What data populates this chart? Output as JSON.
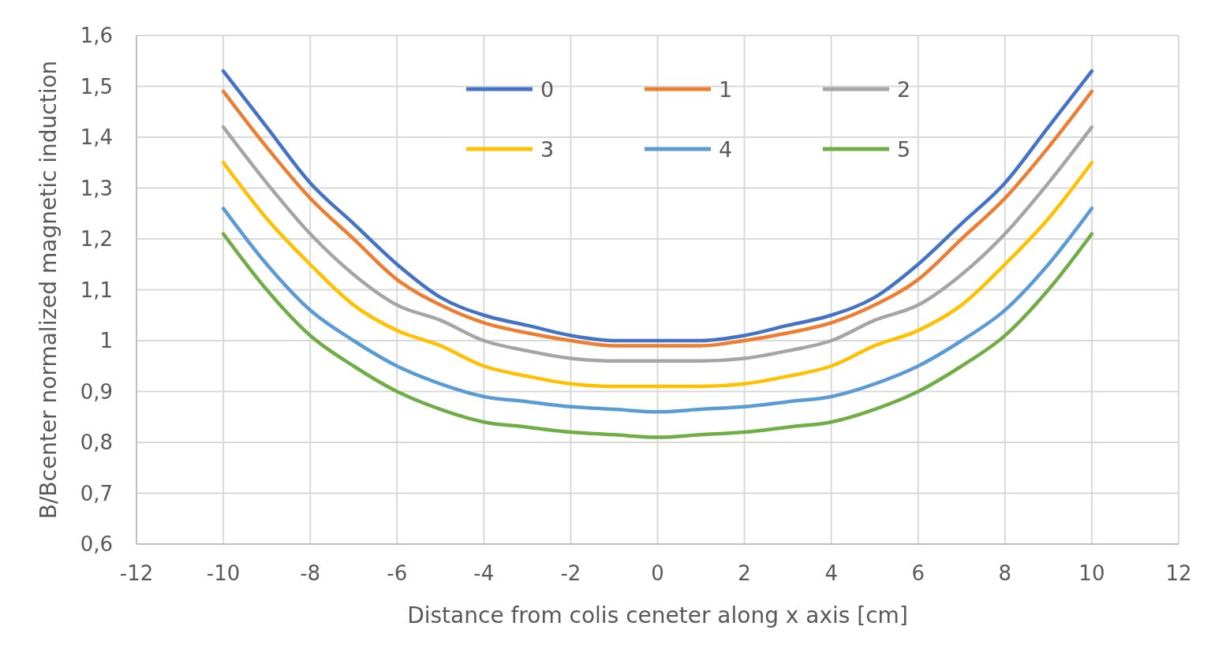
{
  "chart_data": {
    "type": "line",
    "xlabel": "Distance from colis ceneter along x axis [cm]",
    "ylabel": "B/Bcenter normalized magnetic induction",
    "x": [
      -10,
      -9,
      -8,
      -7,
      -6,
      -5,
      -4,
      -3,
      -2,
      -1,
      0,
      1,
      2,
      3,
      4,
      5,
      6,
      7,
      8,
      9,
      10
    ],
    "series": [
      {
        "name": "0",
        "color": "#4472c4",
        "values": [
          1.53,
          1.42,
          1.31,
          1.23,
          1.15,
          1.085,
          1.05,
          1.03,
          1.01,
          1.0,
          1.0,
          1.0,
          1.01,
          1.03,
          1.05,
          1.085,
          1.15,
          1.23,
          1.31,
          1.42,
          1.53
        ]
      },
      {
        "name": "1",
        "color": "#ed7d31",
        "values": [
          1.49,
          1.38,
          1.28,
          1.2,
          1.12,
          1.07,
          1.035,
          1.015,
          1.0,
          0.99,
          0.99,
          0.99,
          1.0,
          1.015,
          1.035,
          1.07,
          1.12,
          1.2,
          1.28,
          1.38,
          1.49
        ]
      },
      {
        "name": "2",
        "color": "#a5a5a5",
        "values": [
          1.42,
          1.31,
          1.21,
          1.13,
          1.07,
          1.04,
          1.0,
          0.98,
          0.965,
          0.96,
          0.96,
          0.96,
          0.965,
          0.98,
          1.0,
          1.04,
          1.07,
          1.13,
          1.21,
          1.31,
          1.42
        ]
      },
      {
        "name": "3",
        "color": "#ffc000",
        "values": [
          1.35,
          1.24,
          1.15,
          1.07,
          1.02,
          0.99,
          0.95,
          0.93,
          0.915,
          0.91,
          0.91,
          0.91,
          0.915,
          0.93,
          0.95,
          0.99,
          1.02,
          1.07,
          1.15,
          1.24,
          1.35
        ]
      },
      {
        "name": "4",
        "color": "#5b9bd5",
        "values": [
          1.26,
          1.15,
          1.06,
          1.0,
          0.95,
          0.915,
          0.89,
          0.88,
          0.87,
          0.865,
          0.86,
          0.865,
          0.87,
          0.88,
          0.89,
          0.915,
          0.95,
          1.0,
          1.06,
          1.15,
          1.26
        ]
      },
      {
        "name": "5",
        "color": "#70ad47",
        "values": [
          1.21,
          1.1,
          1.01,
          0.95,
          0.9,
          0.865,
          0.84,
          0.83,
          0.82,
          0.815,
          0.81,
          0.815,
          0.82,
          0.83,
          0.84,
          0.865,
          0.9,
          0.95,
          1.01,
          1.1,
          1.21
        ]
      }
    ],
    "xlim": [
      -12,
      12
    ],
    "xticks": [
      -12,
      -10,
      -8,
      -6,
      -4,
      -2,
      0,
      2,
      4,
      6,
      8,
      10,
      12
    ],
    "ylim": [
      0.6,
      1.6
    ],
    "yticks": [
      {
        "value": 0.6,
        "label": "0,6"
      },
      {
        "value": 0.7,
        "label": "0,7"
      },
      {
        "value": 0.8,
        "label": "0,8"
      },
      {
        "value": 0.9,
        "label": "0,9"
      },
      {
        "value": 1,
        "label": "1"
      },
      {
        "value": 1.1,
        "label": "1,1"
      },
      {
        "value": 1.2,
        "label": "1,2"
      },
      {
        "value": 1.3,
        "label": "1,3"
      },
      {
        "value": 1.4,
        "label": "1,4"
      },
      {
        "value": 1.5,
        "label": "1,5"
      },
      {
        "value": 1.6,
        "label": "1,6"
      }
    ],
    "grid": true,
    "legend": "top",
    "line_style": "solid"
  }
}
